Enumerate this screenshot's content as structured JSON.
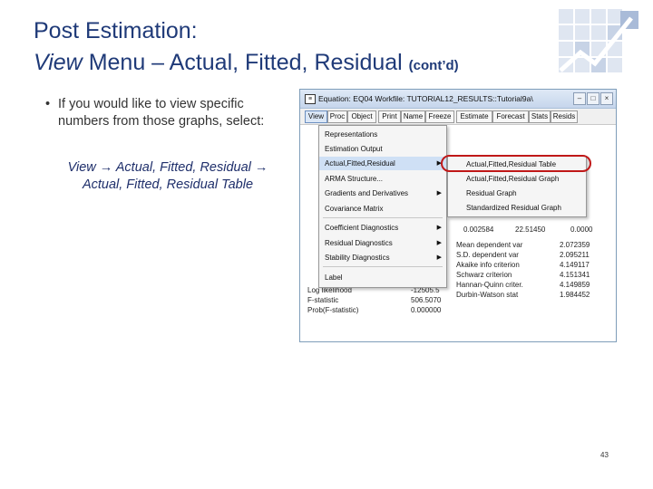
{
  "slide": {
    "title_line1": "Post Estimation:",
    "title_line2_italic": "View",
    "title_line2_rest": " Menu – Actual, Fitted, Residual ",
    "title_cont": "(cont’d)",
    "bullet_mark": "•",
    "bullet_text": "If you would like to view specific numbers from those graphs, select:",
    "menu_path_line1": "View → Actual, Fitted, Residual →",
    "menu_path_line2": "Actual, Fitted, Residual Table",
    "page_number": "43"
  },
  "window": {
    "title_icon": "≡",
    "title": "Equation: EQ04   Workfile: TUTORIAL12_RESULTS::Tutorial9a\\",
    "controls": {
      "minimize": "–",
      "maximize": "□",
      "close": "×"
    },
    "toolbar": [
      "View",
      "Proc",
      "Object",
      "Print",
      "Name",
      "Freeze",
      "Estimate",
      "Forecast",
      "Stats",
      "Resids"
    ]
  },
  "view_menu": {
    "items": [
      "Representations",
      "Estimation Output",
      "Actual,Fitted,Residual",
      "ARMA Structure...",
      "Gradients and Derivatives",
      "Covariance Matrix",
      "Coefficient Diagnostics",
      "Residual Diagnostics",
      "Stability Diagnostics",
      "Label"
    ],
    "highlighted": "Actual,Fitted,Residual"
  },
  "submenu": {
    "items": [
      "Actual,Fitted,Residual Table",
      "Actual,Fitted,Residual Graph",
      "Residual Graph",
      "Standardized Residual Graph"
    ]
  },
  "stats_left": [
    {
      "label": "Log likelihood",
      "value": "-12505.5"
    },
    {
      "label": "F-statistic",
      "value": "506.5070"
    },
    {
      "label": "Prob(F-statistic)",
      "value": "0.000000"
    }
  ],
  "stats_partial": [
    {
      "c1": "0.002584",
      "c2": "22.51450",
      "c3": "0.0000"
    }
  ],
  "stats_right": [
    {
      "label": "Mean dependent var",
      "value": "2.072359"
    },
    {
      "label": "S.D. dependent var",
      "value": "2.095211"
    },
    {
      "label": "Akaike info criterion",
      "value": "4.149117"
    },
    {
      "label": "Schwarz criterion",
      "value": "4.151341"
    },
    {
      "label": "Hannan-Quinn criter.",
      "value": "4.149859"
    },
    {
      "label": "Durbin-Watson stat",
      "value": "1.984452"
    }
  ]
}
